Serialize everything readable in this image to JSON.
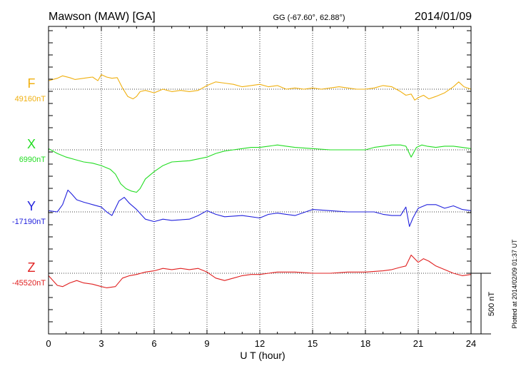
{
  "header": {
    "station": "Mawson (MAW)  [GA]",
    "coords": "GG (-67.60°,  62.88°)",
    "date": "2014/01/09"
  },
  "side_note": "Plotted at 2014/02/09 01:37  UT",
  "scale_label": "500 nT",
  "chart_data": {
    "type": "line",
    "xlabel": "U T (hour)",
    "xlim": [
      0,
      24
    ],
    "xticks": [
      "0",
      "3",
      "6",
      "9",
      "12",
      "15",
      "18",
      "21",
      "24"
    ],
    "grid": true,
    "scale_bar_nT": 500,
    "series": [
      {
        "name": "F",
        "baseline_label": "49160nT",
        "baseline_nT": 49160,
        "color": "#f0b010",
        "x": [
          0,
          0.5,
          0.8,
          1.2,
          1.5,
          2,
          2.5,
          2.8,
          3,
          3.3,
          3.6,
          3.9,
          4.2,
          4.5,
          4.8,
          5.0,
          5.2,
          5.5,
          6,
          6.5,
          7,
          7.5,
          8,
          8.5,
          9,
          9.5,
          10,
          10.5,
          11,
          11.5,
          12,
          12.5,
          13,
          13.5,
          14,
          14.5,
          15,
          15.5,
          16,
          16.5,
          17,
          17.5,
          18,
          18.5,
          19,
          19.5,
          20,
          20.3,
          20.6,
          20.8,
          21,
          21.3,
          21.6,
          22,
          22.5,
          23,
          23.3,
          23.6,
          24
        ],
        "y": [
          70,
          90,
          110,
          95,
          80,
          90,
          100,
          70,
          120,
          100,
          90,
          95,
          10,
          -60,
          -80,
          -60,
          -20,
          -10,
          -30,
          0,
          -20,
          -10,
          -20,
          -10,
          30,
          60,
          50,
          40,
          20,
          30,
          40,
          20,
          30,
          0,
          10,
          0,
          10,
          0,
          10,
          20,
          10,
          0,
          0,
          10,
          30,
          20,
          -20,
          -50,
          -40,
          -90,
          -70,
          -50,
          -80,
          -60,
          -30,
          20,
          60,
          20,
          0
        ]
      },
      {
        "name": "X",
        "baseline_label": "6990nT",
        "baseline_nT": 6990,
        "color": "#22dd22",
        "x": [
          0,
          0.5,
          1,
          1.5,
          2,
          2.5,
          3,
          3.5,
          3.8,
          4.1,
          4.4,
          4.7,
          5.0,
          5.2,
          5.5,
          6,
          6.5,
          7,
          8,
          9,
          9.5,
          10,
          10.5,
          11,
          11.5,
          12,
          12.5,
          13,
          13.5,
          14,
          15,
          16,
          17,
          18,
          18.5,
          19,
          19.5,
          20,
          20.3,
          20.6,
          20.9,
          21.2,
          21.5,
          22,
          22.5,
          23,
          23.5,
          24
        ],
        "y": [
          10,
          -30,
          -60,
          -80,
          -100,
          -110,
          -130,
          -160,
          -200,
          -280,
          -320,
          -340,
          -350,
          -320,
          -240,
          -180,
          -130,
          -100,
          -90,
          -60,
          -30,
          -10,
          0,
          10,
          20,
          20,
          30,
          40,
          30,
          20,
          10,
          0,
          0,
          0,
          20,
          30,
          40,
          40,
          30,
          -60,
          20,
          40,
          30,
          20,
          30,
          30,
          20,
          10
        ]
      },
      {
        "name": "Y",
        "baseline_label": "-17190nT",
        "baseline_nT": -17190,
        "color": "#2222dd",
        "x": [
          0,
          0.5,
          0.8,
          1.1,
          1.3,
          1.6,
          2,
          2.5,
          3,
          3.3,
          3.6,
          4.0,
          4.3,
          4.6,
          5.0,
          5.5,
          6,
          6.5,
          7,
          8,
          8.5,
          9,
          9.5,
          10,
          11,
          12,
          12.5,
          13,
          13.5,
          14,
          15,
          16,
          17,
          18,
          18.5,
          19,
          19.5,
          20,
          20.3,
          20.5,
          20.7,
          21,
          21.5,
          22,
          22.5,
          23,
          23.5,
          24
        ],
        "y": [
          10,
          0,
          60,
          180,
          150,
          100,
          80,
          60,
          40,
          0,
          -30,
          90,
          120,
          70,
          20,
          -60,
          -80,
          -60,
          -70,
          -60,
          -30,
          10,
          -20,
          -40,
          -30,
          -50,
          -20,
          -10,
          -20,
          -30,
          20,
          10,
          0,
          0,
          0,
          -20,
          -30,
          -30,
          40,
          -120,
          -50,
          30,
          60,
          60,
          30,
          50,
          20,
          10
        ]
      },
      {
        "name": "Z",
        "baseline_label": "-45520nT",
        "baseline_nT": -45520,
        "color": "#e02020",
        "x": [
          0,
          0.5,
          0.8,
          1.2,
          1.6,
          2,
          2.5,
          3,
          3.3,
          3.8,
          4.2,
          4.6,
          5.0,
          5.5,
          6,
          6.5,
          7,
          7.5,
          8,
          8.5,
          9,
          9.5,
          10,
          10.5,
          11,
          11.5,
          12,
          12.5,
          13,
          14,
          15,
          16,
          17,
          18,
          19,
          19.5,
          20,
          20.3,
          20.6,
          21,
          21.3,
          21.6,
          22,
          22.5,
          23,
          23.5,
          24
        ],
        "y": [
          -20,
          -100,
          -110,
          -80,
          -60,
          -80,
          -90,
          -110,
          -120,
          -110,
          -40,
          -20,
          -10,
          10,
          20,
          40,
          30,
          40,
          30,
          40,
          10,
          -40,
          -60,
          -40,
          -20,
          -10,
          -10,
          0,
          10,
          10,
          0,
          0,
          10,
          10,
          20,
          30,
          50,
          60,
          150,
          90,
          120,
          100,
          60,
          30,
          0,
          -20,
          -10
        ]
      }
    ]
  }
}
